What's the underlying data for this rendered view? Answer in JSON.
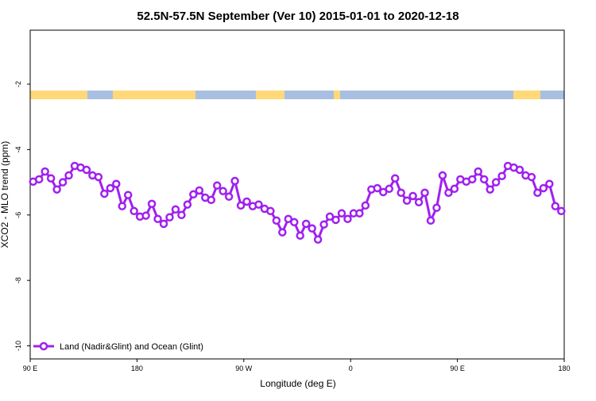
{
  "chart_data": {
    "type": "line",
    "title": "52.5N-57.5N September (Ver 10)   2015-01-01 to 2020-12-18",
    "x_label": "Longitude (deg E)",
    "y_label": "XCO2 - MLO trend (ppm)",
    "xlim": [
      90,
      540
    ],
    "xticks": [
      {
        "value": 90,
        "label": "90 E"
      },
      180,
      {
        "value": 270,
        "label": "90 W"
      },
      {
        "value": 360,
        "label": "0"
      },
      {
        "value": 450,
        "label": "90 E"
      },
      {
        "value": 540,
        "label": "180"
      }
    ],
    "ylim": [
      -10.4,
      -0.35
    ],
    "yticks": [
      -10,
      -8,
      -6,
      -4,
      -2
    ],
    "x": [
      92.5,
      97.5,
      102.5,
      107.5,
      112.5,
      117.5,
      122.5,
      127.5,
      132.5,
      137.5,
      142.5,
      147.5,
      152.5,
      157.5,
      162.5,
      167.5,
      172.5,
      177.5,
      182.5,
      187.5,
      192.5,
      197.5,
      202.5,
      207.5,
      212.5,
      217.5,
      222.5,
      227.5,
      232.5,
      237.5,
      242.5,
      247.5,
      252.5,
      257.5,
      262.5,
      267.5,
      272.5,
      277.5,
      282.5,
      287.5,
      292.5,
      297.5,
      302.5,
      307.5,
      312.5,
      317.5,
      322.5,
      327.5,
      332.5,
      337.5,
      342.5,
      347.5,
      352.5,
      357.5,
      362.5,
      367.5,
      372.5,
      377.5,
      382.5,
      387.5,
      392.5,
      397.5,
      402.5,
      407.5,
      412.5,
      417.5,
      422.5,
      427.5,
      432.5,
      437.5,
      442.5,
      447.5,
      452.5,
      457.5,
      462.5,
      467.5,
      472.5,
      477.5,
      482.5,
      487.5,
      492.5,
      497.5,
      502.5,
      507.5,
      512.5,
      517.5,
      522.5,
      527.5,
      532.5,
      537.5
    ],
    "series": [
      {
        "name": "Land (Nadir&Glint) and Ocean (Glint)",
        "color": "#a020f0",
        "values": [
          -4.98,
          -4.91,
          -4.67,
          -4.88,
          -5.22,
          -5.0,
          -4.79,
          -4.5,
          -4.55,
          -4.62,
          -4.79,
          -4.84,
          -5.35,
          -5.18,
          -5.05,
          -5.73,
          -5.39,
          -5.88,
          -6.05,
          -6.02,
          -5.66,
          -6.12,
          -6.27,
          -6.07,
          -5.83,
          -6.0,
          -5.68,
          -5.37,
          -5.25,
          -5.47,
          -5.54,
          -5.1,
          -5.27,
          -5.44,
          -4.96,
          -5.71,
          -5.59,
          -5.73,
          -5.68,
          -5.81,
          -5.88,
          -6.17,
          -6.53,
          -6.12,
          -6.22,
          -6.63,
          -6.27,
          -6.41,
          -6.75,
          -6.29,
          -6.05,
          -6.15,
          -5.95,
          -6.12,
          -5.95,
          -5.95,
          -5.71,
          -5.22,
          -5.18,
          -5.3,
          -5.2,
          -4.88,
          -5.32,
          -5.56,
          -5.42,
          -5.61,
          -5.32,
          -6.17,
          -5.78,
          -4.79,
          -5.32,
          -5.2,
          -4.91,
          -4.98,
          -4.91,
          -4.67,
          -4.91,
          -5.22,
          -5.0,
          -4.81,
          -4.5,
          -4.55,
          -4.62,
          -4.79,
          -4.84,
          -5.32,
          -5.18,
          -5.05,
          -5.73,
          -5.88
        ]
      }
    ]
  }
}
